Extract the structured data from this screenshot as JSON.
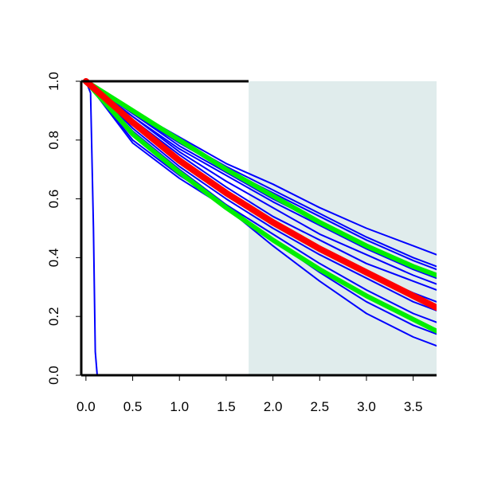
{
  "chart_data": {
    "type": "line",
    "title": "",
    "xlabel": "",
    "ylabel": "",
    "xlim": [
      -0.05,
      3.75
    ],
    "ylim": [
      0,
      1
    ],
    "x_ticks": [
      "0.0",
      "0.5",
      "1.0",
      "1.5",
      "2.0",
      "2.5",
      "3.0",
      "3.5"
    ],
    "y_ticks": [
      "0.0",
      "0.2",
      "0.4",
      "0.6",
      "0.8",
      "1.0"
    ],
    "grid": false,
    "legend": "none",
    "shaded_region": {
      "x_start": 1.74,
      "x_end": 3.75,
      "color": "#e0ecec"
    },
    "series": [
      {
        "color": "#0000ff",
        "width": 2,
        "x": [
          0,
          0.05,
          0.08,
          0.1,
          0.12,
          0.15,
          3.75
        ],
        "y": [
          1,
          0.96,
          0.5,
          0.08,
          0.0,
          0.0,
          0.0
        ]
      },
      {
        "color": "#0000ff",
        "width": 2,
        "x": [
          0,
          0.5,
          1,
          1.5,
          2,
          2.5,
          3,
          3.5,
          3.75
        ],
        "y": [
          1,
          0.9,
          0.81,
          0.72,
          0.65,
          0.57,
          0.5,
          0.44,
          0.41
        ]
      },
      {
        "color": "#0000ff",
        "width": 2,
        "x": [
          0,
          0.5,
          1,
          1.5,
          2,
          2.5,
          3,
          3.5,
          3.75
        ],
        "y": [
          1,
          0.9,
          0.8,
          0.71,
          0.63,
          0.55,
          0.47,
          0.4,
          0.37
        ]
      },
      {
        "color": "#0000ff",
        "width": 2,
        "x": [
          0,
          0.5,
          1,
          1.5,
          2,
          2.5,
          3,
          3.5,
          3.75
        ],
        "y": [
          1,
          0.89,
          0.79,
          0.7,
          0.62,
          0.54,
          0.46,
          0.39,
          0.36
        ]
      },
      {
        "color": "#0000ff",
        "width": 2,
        "x": [
          0,
          0.5,
          1,
          1.5,
          2,
          2.5,
          3,
          3.5,
          3.75
        ],
        "y": [
          1,
          0.89,
          0.78,
          0.69,
          0.6,
          0.52,
          0.44,
          0.37,
          0.34
        ]
      },
      {
        "color": "#0000ff",
        "width": 2,
        "x": [
          0,
          0.5,
          1,
          1.5,
          2,
          2.5,
          3,
          3.5,
          3.75
        ],
        "y": [
          1,
          0.88,
          0.77,
          0.68,
          0.59,
          0.51,
          0.43,
          0.36,
          0.33
        ]
      },
      {
        "color": "#0000ff",
        "width": 2,
        "x": [
          0,
          0.5,
          1,
          1.5,
          2,
          2.5,
          3,
          3.5,
          3.75
        ],
        "y": [
          1,
          0.88,
          0.76,
          0.66,
          0.57,
          0.48,
          0.41,
          0.34,
          0.31
        ]
      },
      {
        "color": "#0000ff",
        "width": 2,
        "x": [
          0,
          0.5,
          1,
          1.5,
          2,
          2.5,
          3,
          3.5,
          3.75
        ],
        "y": [
          1,
          0.87,
          0.75,
          0.64,
          0.54,
          0.46,
          0.38,
          0.32,
          0.29
        ]
      },
      {
        "color": "#0000ff",
        "width": 2,
        "x": [
          0,
          0.5,
          1,
          1.5,
          2,
          2.5,
          3,
          3.5,
          3.75
        ],
        "y": [
          1,
          0.86,
          0.73,
          0.62,
          0.52,
          0.43,
          0.35,
          0.28,
          0.25
        ]
      },
      {
        "color": "#0000ff",
        "width": 2,
        "x": [
          0,
          0.5,
          1,
          1.5,
          2,
          2.5,
          3,
          3.5,
          3.75
        ],
        "y": [
          1,
          0.84,
          0.71,
          0.6,
          0.5,
          0.41,
          0.33,
          0.25,
          0.22
        ]
      },
      {
        "color": "#0000ff",
        "width": 2,
        "x": [
          0,
          0.5,
          1,
          1.5,
          2,
          2.5,
          3,
          3.5,
          3.75
        ],
        "y": [
          1,
          0.83,
          0.7,
          0.58,
          0.48,
          0.38,
          0.29,
          0.21,
          0.18
        ]
      },
      {
        "color": "#0000ff",
        "width": 2,
        "x": [
          0,
          0.5,
          1,
          1.5,
          2,
          2.5,
          3,
          3.5,
          3.75
        ],
        "y": [
          1,
          0.8,
          0.68,
          0.58,
          0.46,
          0.35,
          0.25,
          0.17,
          0.14
        ]
      },
      {
        "color": "#0000ff",
        "width": 2,
        "x": [
          0,
          0.5,
          1,
          1.5,
          2,
          2.5,
          3,
          3.5,
          3.75
        ],
        "y": [
          1,
          0.79,
          0.67,
          0.57,
          0.44,
          0.32,
          0.21,
          0.13,
          0.1
        ]
      },
      {
        "color": "#00ee00",
        "width": 6,
        "x": [
          0,
          0.5,
          1,
          1.5,
          2,
          2.5,
          3,
          3.5,
          3.75
        ],
        "y": [
          1,
          0.9,
          0.8,
          0.7,
          0.61,
          0.52,
          0.44,
          0.37,
          0.34
        ]
      },
      {
        "color": "#00ee00",
        "width": 6,
        "x": [
          0,
          0.5,
          1,
          1.5,
          2,
          2.5,
          3,
          3.5,
          3.75
        ],
        "y": [
          1,
          0.82,
          0.69,
          0.57,
          0.46,
          0.36,
          0.27,
          0.19,
          0.15
        ]
      },
      {
        "color": "#ff0000",
        "width": 8,
        "x": [
          0,
          0.5,
          1,
          1.5,
          2,
          2.5,
          3,
          3.5,
          3.75
        ],
        "y": [
          1,
          0.86,
          0.73,
          0.62,
          0.52,
          0.43,
          0.35,
          0.27,
          0.23
        ]
      }
    ]
  }
}
